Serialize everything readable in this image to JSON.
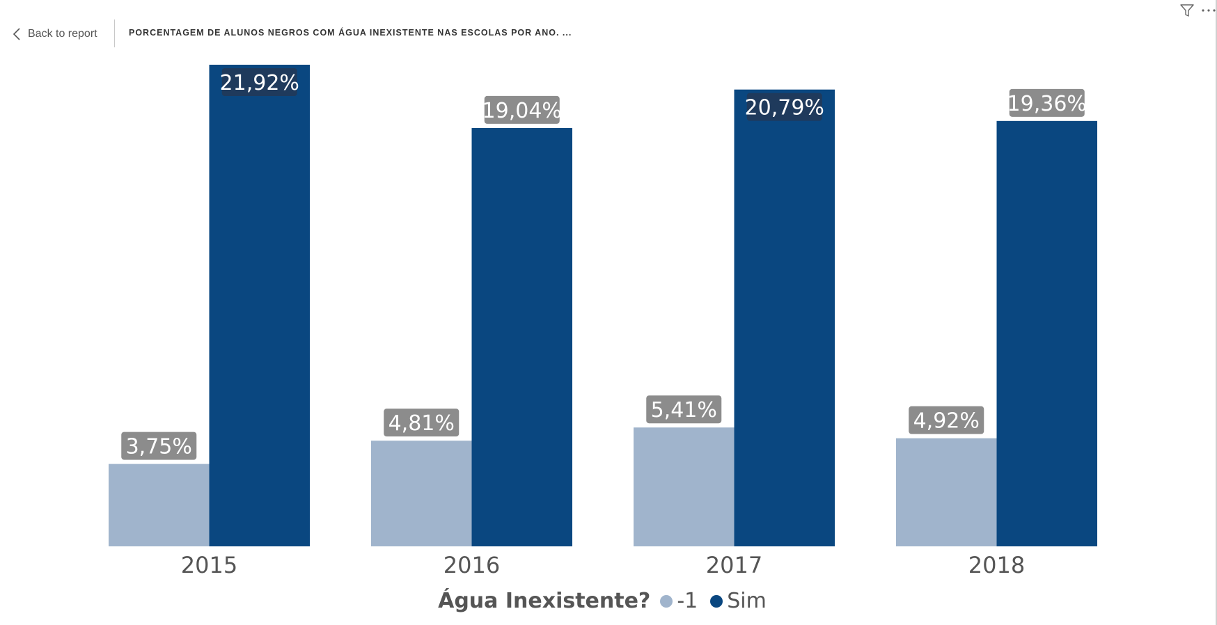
{
  "nav": {
    "back_label": "Back to report"
  },
  "header": {
    "title": "PORCENTAGEM DE ALUNOS NEGROS COM ÁGUA INEXISTENTE NAS ESCOLAS POR ANO. ..."
  },
  "toolbar": {
    "filter_icon": "filter-icon",
    "more_icon": "more-options-icon"
  },
  "chart_data": {
    "type": "bar",
    "categories": [
      "2015",
      "2016",
      "2017",
      "2018"
    ],
    "series": [
      {
        "name": "-1",
        "color": "#a0b4cc",
        "values": [
          3.75,
          4.81,
          5.41,
          4.92
        ],
        "labels": [
          "3,75%",
          "4,81%",
          "5,41%",
          "4,92%"
        ]
      },
      {
        "name": "Sim",
        "color": "#0a4780",
        "values": [
          21.92,
          19.04,
          20.79,
          19.36
        ],
        "labels": [
          "21,92%",
          "19,04%",
          "20,79%",
          "19,36%"
        ]
      }
    ],
    "legend_title": "Água Inexistente?",
    "legend_position": "bottom-center",
    "ylim": [
      0,
      21.92
    ],
    "grid": false
  }
}
